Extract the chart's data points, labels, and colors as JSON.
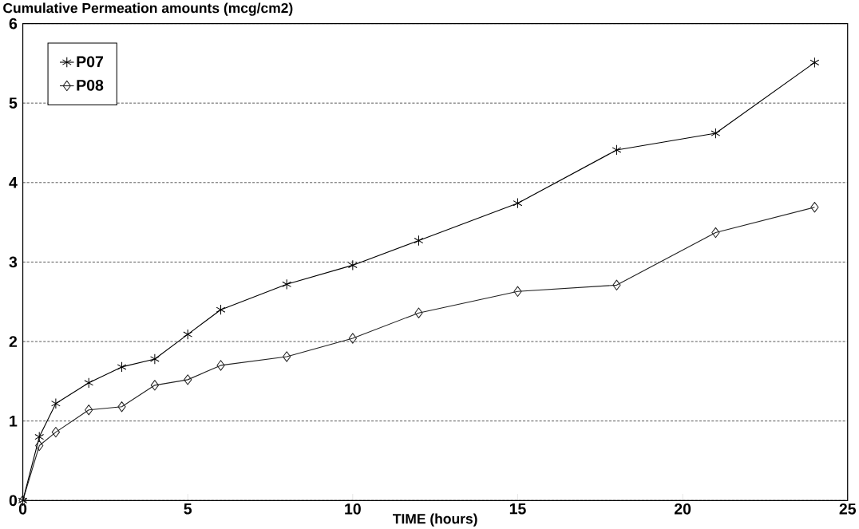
{
  "chart_data": {
    "type": "line",
    "ylabel": "Cumulative Permeation amounts (mcg/cm2)",
    "xlabel": "TIME (hours)",
    "xlim": [
      0,
      25
    ],
    "xticks": [
      0,
      5,
      10,
      15,
      20,
      25
    ],
    "ylim": [
      0,
      6
    ],
    "yticks": [
      0,
      1,
      2,
      3,
      4,
      5,
      6
    ],
    "grid": "y",
    "legend": "top left",
    "line_style": "solid",
    "x": [
      0,
      0.5,
      1,
      2,
      3,
      4,
      5,
      6,
      8,
      10,
      12,
      15,
      18,
      21,
      24
    ],
    "series": [
      {
        "name": "P07",
        "color": "#000000",
        "marker": "cross",
        "values": [
          0,
          0.8,
          1.22,
          1.48,
          1.68,
          1.78,
          2.09,
          2.4,
          2.72,
          2.96,
          3.27,
          3.74,
          4.41,
          4.62,
          5.51
        ]
      },
      {
        "name": "P08",
        "color": "#222222",
        "marker": "diamond",
        "values": [
          0,
          0.69,
          0.86,
          1.14,
          1.18,
          1.45,
          1.52,
          1.7,
          1.81,
          2.04,
          2.36,
          2.63,
          2.71,
          3.37,
          3.69
        ]
      }
    ]
  }
}
